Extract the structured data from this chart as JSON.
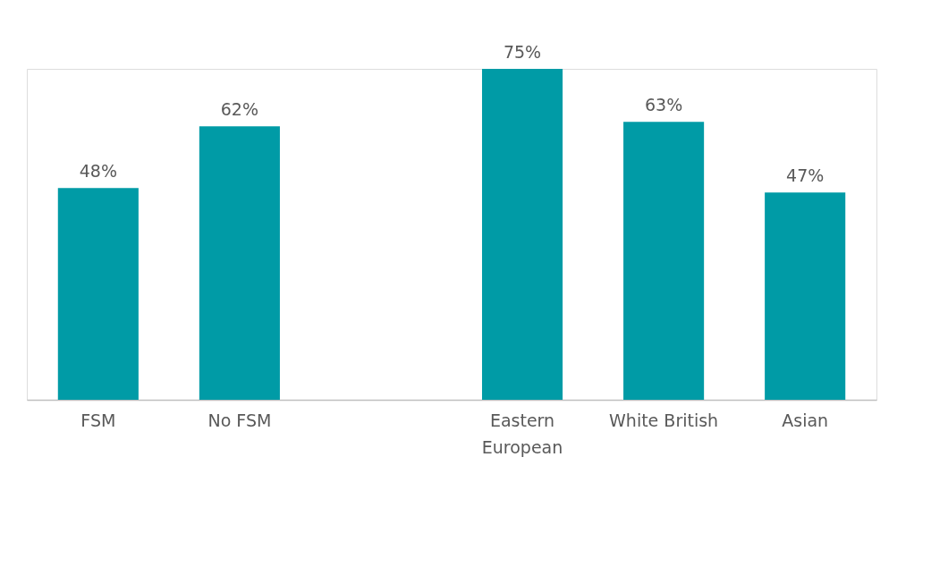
{
  "chart_data": {
    "type": "bar",
    "categories": [
      "FSM",
      "No FSM",
      null,
      "Eastern European",
      "White British",
      "Asian"
    ],
    "values": [
      48,
      62,
      null,
      75,
      63,
      47
    ],
    "value_labels": [
      "48%",
      "62%",
      null,
      "75%",
      "63%",
      "47%"
    ],
    "color": "#009ba6",
    "grid": false
  }
}
